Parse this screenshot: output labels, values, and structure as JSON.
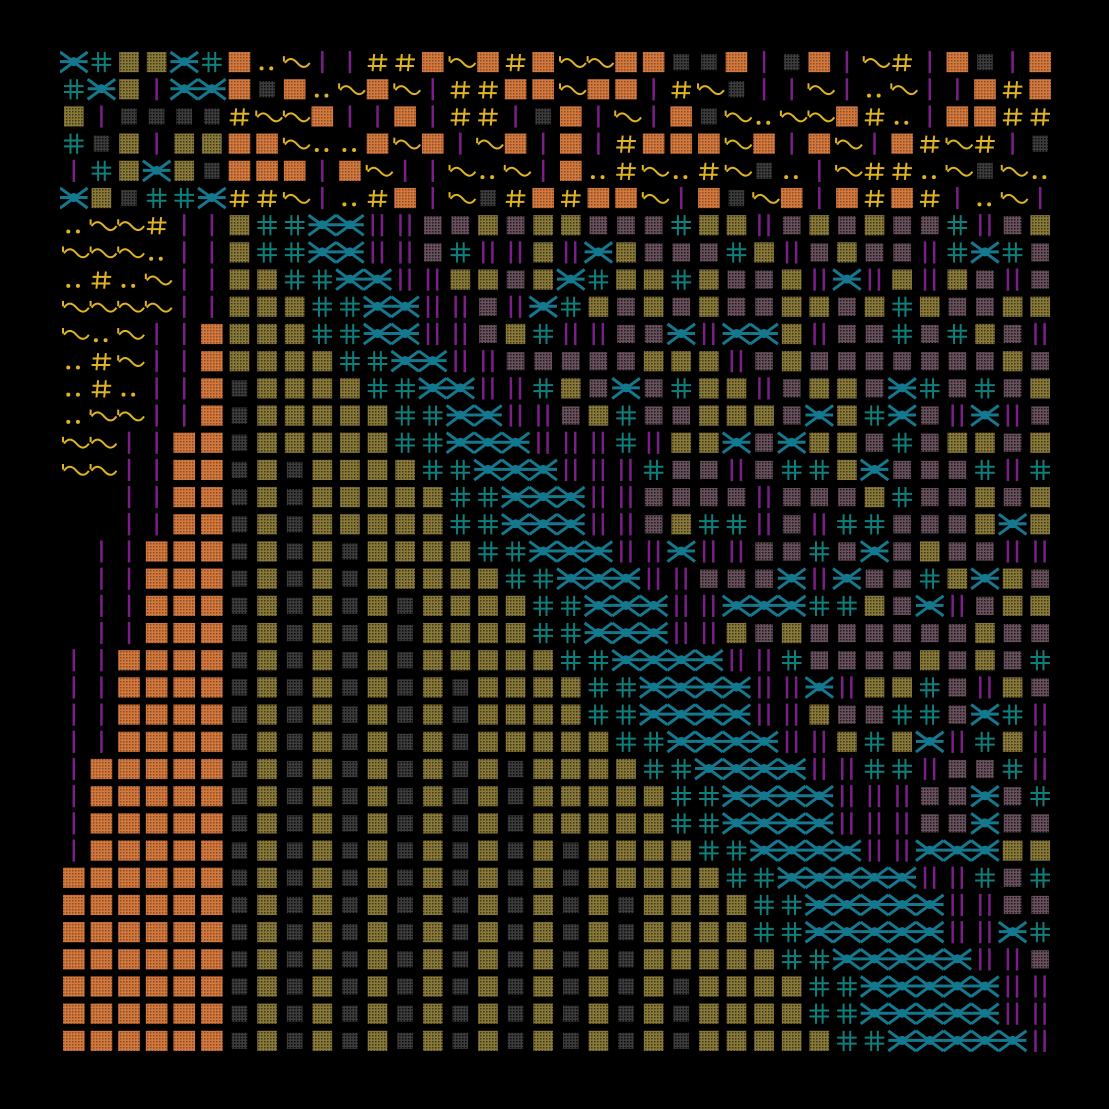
{
  "artwork": {
    "description_visible": "",
    "palette": {
      "background": "#000000",
      "copper": "#d2793f",
      "gold": "#e0b423",
      "olive": "#8a7a3a",
      "teal": "#0f7f7c",
      "tealBright": "#14798f",
      "purple": "#7a1f87",
      "mauve": "#8a6b7a"
    },
    "glyph_kinds": [
      "copper-block",
      "dot-block",
      "olive-dot-block",
      "purple-bar",
      "teal-cross",
      "teal-star",
      "gold-tilde",
      "gold-hash",
      "gold-dots"
    ],
    "cols": 36,
    "rows": 37
  }
}
